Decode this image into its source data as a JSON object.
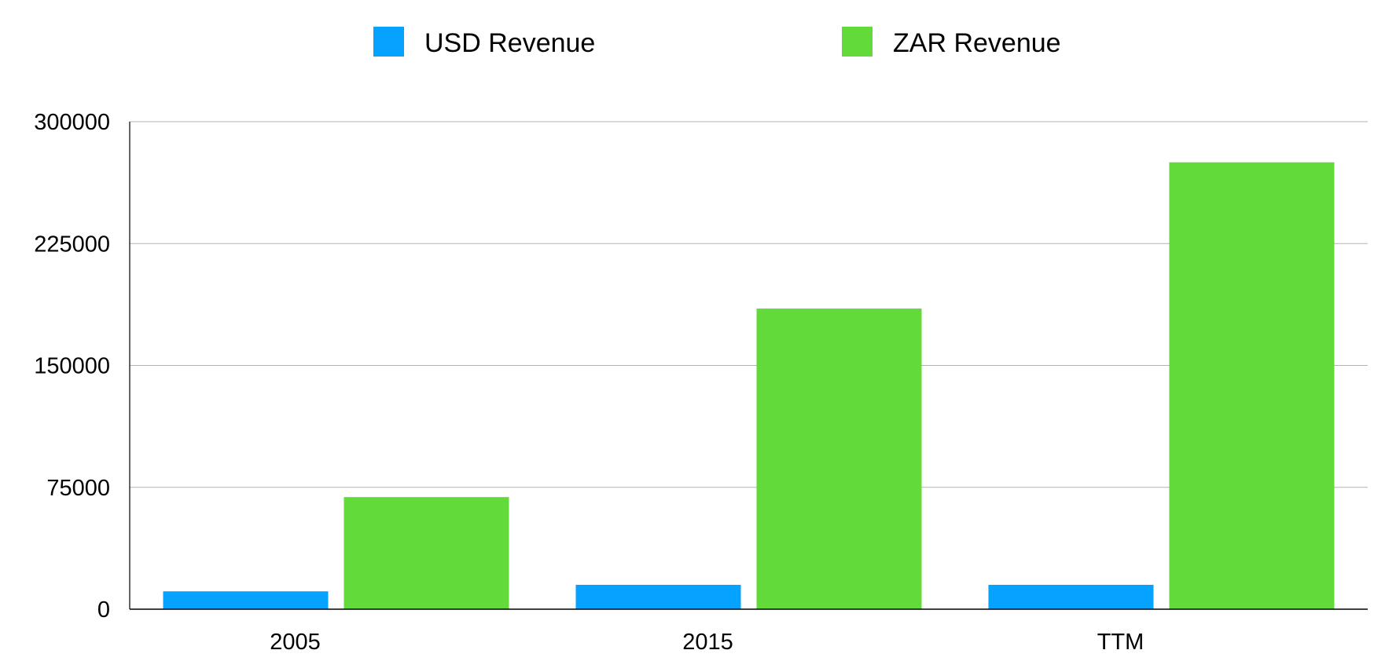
{
  "chart_data": {
    "type": "bar",
    "categories": [
      "2005",
      "2015",
      "TTM"
    ],
    "series": [
      {
        "name": "USD Revenue",
        "color": "#05A2FF",
        "values": [
          11000,
          15000,
          15000
        ]
      },
      {
        "name": "ZAR Revenue",
        "color": "#62DA39",
        "values": [
          69000,
          185000,
          275000
        ]
      }
    ],
    "ylim": [
      0,
      300000
    ],
    "yticks": [
      0,
      75000,
      150000,
      225000,
      300000
    ],
    "ytick_labels": [
      "0",
      "75000",
      "150000",
      "225000",
      "300000"
    ],
    "grid": true,
    "legend_position": "top-center",
    "title": "",
    "xlabel": "",
    "ylabel": ""
  }
}
